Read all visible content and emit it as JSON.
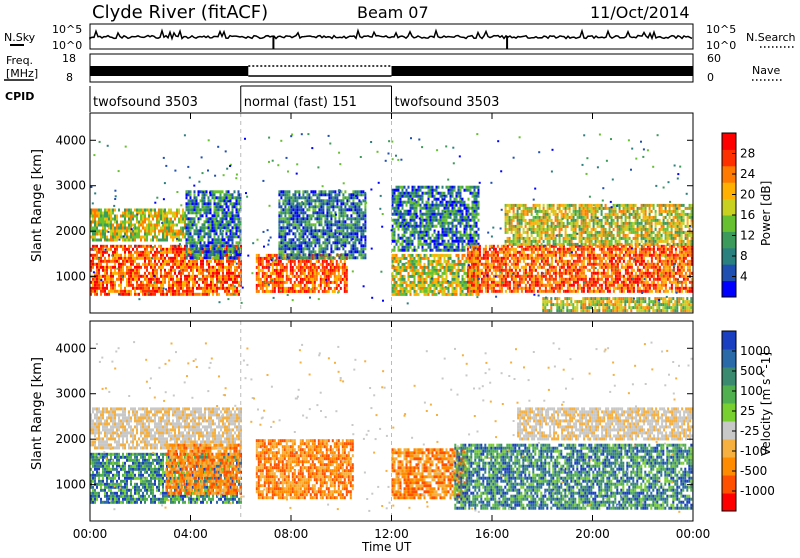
{
  "header": {
    "station": "Clyde River (fitACF)",
    "beam": "Beam 07",
    "date": "11/Oct/2014"
  },
  "sky_panel": {
    "left_label": "N.Sky",
    "right_label": "N.Search",
    "left_ticks": [
      "10^5",
      "10^0"
    ],
    "right_ticks": [
      "10^5",
      "10^0"
    ]
  },
  "freq_panel": {
    "left_label_line1": "Freq.",
    "left_label_line2": "[MHz]",
    "right_label": "Nave",
    "left_ticks": [
      "18",
      "8"
    ],
    "right_ticks": [
      "60",
      "0"
    ]
  },
  "cpid_panel": {
    "label": "CPID",
    "segments": [
      {
        "name": "twofsound 3503",
        "start_h": 0,
        "end_h": 6
      },
      {
        "name": "normal (fast) 151",
        "start_h": 6,
        "end_h": 12
      },
      {
        "name": "twofsound 3503",
        "start_h": 12,
        "end_h": 24
      }
    ]
  },
  "time_axis": {
    "label": "Time UT",
    "ticks": [
      "00:00",
      "04:00",
      "08:00",
      "12:00",
      "16:00",
      "20:00",
      "00:00"
    ]
  },
  "chart_data": [
    {
      "type": "heatmap",
      "panel": "power",
      "ylabel": "Slant Range [km]",
      "ylim": [
        200,
        4600
      ],
      "yticks": [
        "1000",
        "2000",
        "3000",
        "4000"
      ],
      "xlim_hours": [
        0,
        24
      ],
      "colorbar": {
        "label": "Power [dB]",
        "ticks": [
          "4",
          "8",
          "12",
          "16",
          "20",
          "24",
          "28"
        ],
        "colors": [
          "#0000ff",
          "#1f4fb0",
          "#2a7f7f",
          "#3c9a5a",
          "#66c030",
          "#c8d020",
          "#ffb000",
          "#ff7a00",
          "#ff3000",
          "#ff0000"
        ]
      },
      "echo_regions": [
        {
          "t0": 0.0,
          "t1": 6.0,
          "r0": 600,
          "r1": 1700,
          "level": "high"
        },
        {
          "t0": 0.0,
          "t1": 3.8,
          "r0": 1800,
          "r1": 2500,
          "level": "medium"
        },
        {
          "t0": 3.8,
          "t1": 6.0,
          "r0": 1400,
          "r1": 2900,
          "level": "low"
        },
        {
          "t0": 6.6,
          "t1": 10.2,
          "r0": 700,
          "r1": 1500,
          "level": "high"
        },
        {
          "t0": 7.5,
          "t1": 11.0,
          "r0": 1400,
          "r1": 2900,
          "level": "low"
        },
        {
          "t0": 12.0,
          "t1": 15.5,
          "r0": 600,
          "r1": 1500,
          "level": "medium"
        },
        {
          "t0": 12.0,
          "t1": 15.5,
          "r0": 1600,
          "r1": 3000,
          "level": "low"
        },
        {
          "t0": 15.0,
          "t1": 24.0,
          "r0": 700,
          "r1": 1700,
          "level": "high"
        },
        {
          "t0": 16.5,
          "t1": 24.0,
          "r0": 1700,
          "r1": 2600,
          "level": "medium"
        },
        {
          "t0": 18.0,
          "t1": 24.0,
          "r0": 250,
          "r1": 550,
          "level": "medium"
        }
      ]
    },
    {
      "type": "heatmap",
      "panel": "velocity",
      "ylabel": "Slant Range [km]",
      "ylim": [
        200,
        4600
      ],
      "yticks": [
        "1000",
        "2000",
        "3000",
        "4000"
      ],
      "xlim_hours": [
        0,
        24
      ],
      "colorbar": {
        "label": "Velocity [m s^-1]",
        "ticks": [
          "1000",
          "500",
          "100",
          "25",
          "-25",
          "-100",
          "-500",
          "-1000"
        ],
        "colors": [
          "#1a3fc0",
          "#2b6aa8",
          "#3a8a70",
          "#50b050",
          "#78d030",
          "#c8c8c8",
          "#f5b040",
          "#ff8c00",
          "#ff5000",
          "#ff0000"
        ]
      },
      "echo_regions": [
        {
          "t0": 0.0,
          "t1": 6.0,
          "r0": 600,
          "r1": 1700,
          "sign": "positive"
        },
        {
          "t0": 0.0,
          "t1": 6.0,
          "r0": 1800,
          "r1": 2700,
          "sign": "near-zero"
        },
        {
          "t0": 3.0,
          "t1": 6.0,
          "r0": 800,
          "r1": 1900,
          "sign": "negative"
        },
        {
          "t0": 6.6,
          "t1": 10.5,
          "r0": 700,
          "r1": 2000,
          "sign": "negative"
        },
        {
          "t0": 12.0,
          "t1": 15.0,
          "r0": 700,
          "r1": 1800,
          "sign": "negative"
        },
        {
          "t0": 14.5,
          "t1": 24.0,
          "r0": 500,
          "r1": 1900,
          "sign": "positive"
        },
        {
          "t0": 17.0,
          "t1": 24.0,
          "r0": 2000,
          "r1": 2700,
          "sign": "near-zero"
        }
      ]
    }
  ]
}
